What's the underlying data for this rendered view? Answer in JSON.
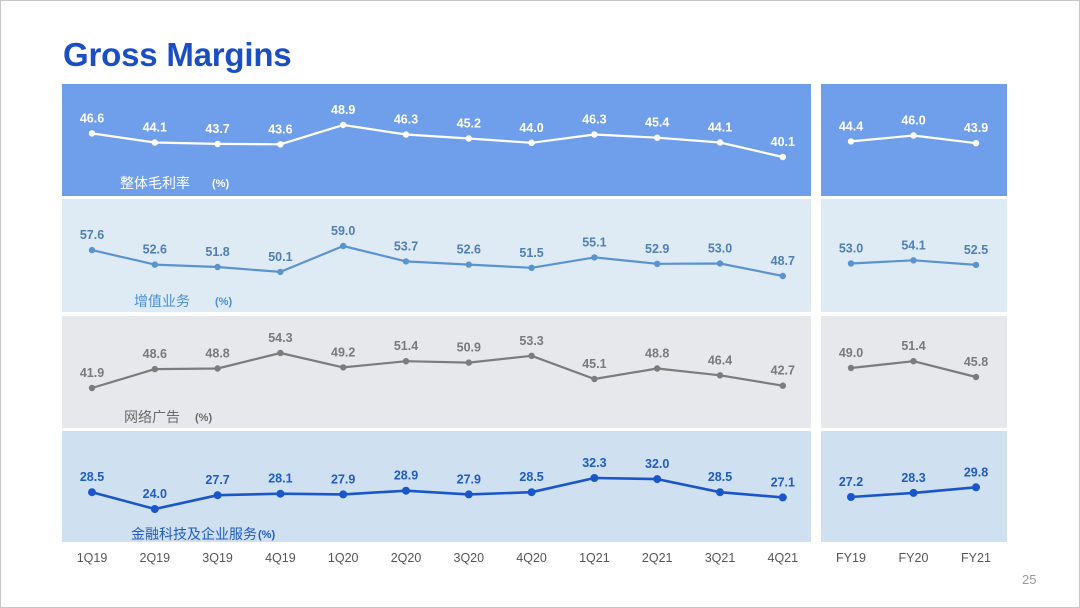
{
  "title": "Gross Margins",
  "page_number": "25",
  "chart_data": {
    "type": "line",
    "title": "Gross Margins",
    "quarterly_categories": [
      "1Q19",
      "2Q19",
      "3Q19",
      "4Q19",
      "1Q20",
      "2Q20",
      "3Q20",
      "4Q20",
      "1Q21",
      "2Q21",
      "3Q21",
      "4Q21"
    ],
    "annual_categories": [
      "FY19",
      "FY20",
      "FY21"
    ],
    "unit": "%",
    "grid": false,
    "series": [
      {
        "name": "整体毛利率",
        "unit_label": "(%)",
        "band_color": "#6f9fea",
        "line_color": "#ffffff",
        "label_color": "#ffffff",
        "name_color": "#ffffff",
        "quarterly": [
          46.6,
          44.1,
          43.7,
          43.6,
          48.9,
          46.3,
          45.2,
          44.0,
          46.3,
          45.4,
          44.1,
          40.1
        ],
        "annual": [
          44.4,
          46.0,
          43.9
        ]
      },
      {
        "name": "增值业务",
        "unit_label": "(%)",
        "band_color": "#deebf5",
        "line_color": "#5b93cf",
        "label_color": "#4f7fb4",
        "name_color": "#4a8fd6",
        "quarterly": [
          57.6,
          52.6,
          51.8,
          50.1,
          59.0,
          53.7,
          52.6,
          51.5,
          55.1,
          52.9,
          53.0,
          48.7
        ],
        "annual": [
          53.0,
          54.1,
          52.5
        ]
      },
      {
        "name": "网络广告",
        "unit_label": "(%)",
        "band_color": "#e6e8eb",
        "line_color": "#7c7c7c",
        "label_color": "#7a7a7a",
        "name_color": "#6a6a6a",
        "quarterly": [
          41.9,
          48.6,
          48.8,
          54.3,
          49.2,
          51.4,
          50.9,
          53.3,
          45.1,
          48.8,
          46.4,
          42.7
        ],
        "annual": [
          49.0,
          51.4,
          45.8
        ]
      },
      {
        "name": "金融科技及企业服务",
        "unit_label": "(%)",
        "band_color": "#cfe0f1",
        "line_color": "#1a56c9",
        "label_color": "#1f5cc4",
        "name_color": "#1f5cc4",
        "quarterly": [
          28.5,
          24.0,
          27.7,
          28.1,
          27.9,
          28.9,
          27.9,
          28.5,
          32.3,
          32.0,
          28.5,
          27.1
        ],
        "annual": [
          27.2,
          28.3,
          29.8
        ]
      }
    ]
  }
}
